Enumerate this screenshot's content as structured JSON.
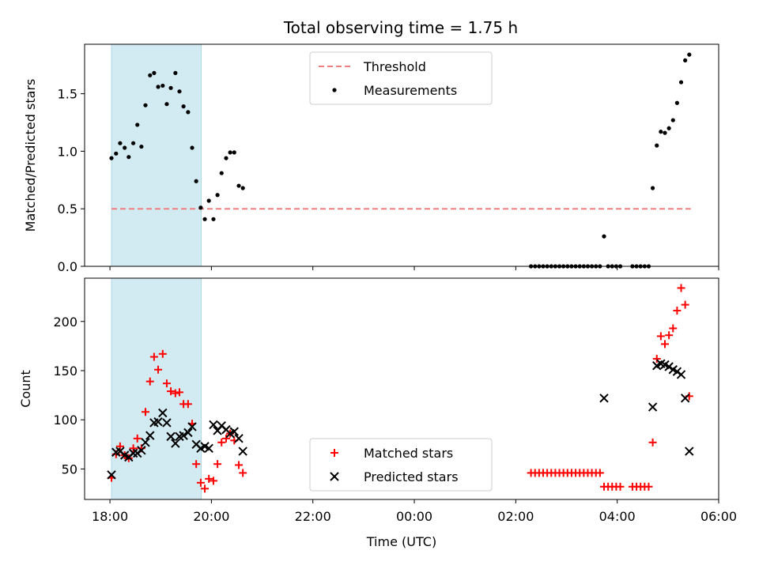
{
  "title": "Total observing time = 1.75 h",
  "colors": {
    "shade": "#ADD8E6",
    "threshold": "#F08080",
    "measurements": "#000000",
    "matched": "#FF0000",
    "predicted": "#000000"
  },
  "chart_data": [
    {
      "type": "scatter",
      "panel": "top",
      "title": "Total observing time = 1.75 h",
      "xlabel": "",
      "ylabel": "Matched/Predicted stars",
      "xlim": [
        17.5,
        30.0
      ],
      "ylim": [
        0.0,
        1.93
      ],
      "x_tick_values": [
        18,
        20,
        22,
        24,
        26,
        28,
        30
      ],
      "y_ticks": [
        "0.0",
        "0.5",
        "1.0",
        "1.5"
      ],
      "y_tick_values": [
        0.0,
        0.5,
        1.0,
        1.5
      ],
      "shaded_region": [
        18.03,
        19.8
      ],
      "legend": {
        "position": "top-center",
        "entries": [
          "Threshold",
          "Measurements"
        ]
      },
      "threshold": {
        "name": "Threshold",
        "value": 0.5,
        "x_range": [
          18.03,
          29.45
        ]
      },
      "series": [
        {
          "name": "Measurements",
          "points": [
            [
              18.03,
              0.94
            ],
            [
              18.12,
              0.98
            ],
            [
              18.2,
              1.07
            ],
            [
              18.29,
              1.03
            ],
            [
              18.37,
              0.95
            ],
            [
              18.46,
              1.07
            ],
            [
              18.54,
              1.23
            ],
            [
              18.62,
              1.04
            ],
            [
              18.7,
              1.4
            ],
            [
              18.79,
              1.66
            ],
            [
              18.87,
              1.68
            ],
            [
              18.95,
              1.56
            ],
            [
              19.04,
              1.57
            ],
            [
              19.12,
              1.41
            ],
            [
              19.2,
              1.55
            ],
            [
              19.29,
              1.68
            ],
            [
              19.37,
              1.52
            ],
            [
              19.45,
              1.39
            ],
            [
              19.54,
              1.34
            ],
            [
              19.62,
              1.03
            ],
            [
              19.7,
              0.74
            ],
            [
              19.79,
              0.51
            ],
            [
              19.87,
              0.41
            ],
            [
              19.95,
              0.57
            ],
            [
              20.04,
              0.41
            ],
            [
              20.12,
              0.62
            ],
            [
              20.2,
              0.81
            ],
            [
              20.29,
              0.94
            ],
            [
              20.37,
              0.99
            ],
            [
              20.45,
              0.99
            ],
            [
              20.54,
              0.7
            ],
            [
              20.62,
              0.68
            ],
            [
              26.3,
              0.0
            ],
            [
              26.38,
              0.0
            ],
            [
              26.46,
              0.0
            ],
            [
              26.54,
              0.0
            ],
            [
              26.62,
              0.0
            ],
            [
              26.7,
              0.0
            ],
            [
              26.78,
              0.0
            ],
            [
              26.86,
              0.0
            ],
            [
              26.94,
              0.0
            ],
            [
              27.02,
              0.0
            ],
            [
              27.1,
              0.0
            ],
            [
              27.18,
              0.0
            ],
            [
              27.26,
              0.0
            ],
            [
              27.34,
              0.0
            ],
            [
              27.42,
              0.0
            ],
            [
              27.5,
              0.0
            ],
            [
              27.58,
              0.0
            ],
            [
              27.66,
              0.0
            ],
            [
              27.74,
              0.26
            ],
            [
              27.82,
              0.0
            ],
            [
              27.9,
              0.0
            ],
            [
              27.98,
              0.0
            ],
            [
              28.06,
              0.0
            ],
            [
              28.3,
              0.0
            ],
            [
              28.38,
              0.0
            ],
            [
              28.46,
              0.0
            ],
            [
              28.54,
              0.0
            ],
            [
              28.62,
              0.0
            ],
            [
              28.7,
              0.68
            ],
            [
              28.78,
              1.05
            ],
            [
              28.86,
              1.17
            ],
            [
              28.94,
              1.16
            ],
            [
              29.02,
              1.2
            ],
            [
              29.1,
              1.27
            ],
            [
              29.18,
              1.42
            ],
            [
              29.26,
              1.6
            ],
            [
              29.34,
              1.79
            ],
            [
              29.42,
              1.84
            ]
          ]
        }
      ]
    },
    {
      "type": "scatter",
      "panel": "bottom",
      "title": "",
      "xlabel": "Time (UTC)",
      "ylabel": "Count",
      "xlim": [
        17.5,
        30.0
      ],
      "ylim": [
        19,
        244
      ],
      "x_ticks": [
        "18:00",
        "20:00",
        "22:00",
        "00:00",
        "02:00",
        "04:00",
        "06:00"
      ],
      "x_tick_values": [
        18,
        20,
        22,
        24,
        26,
        28,
        30
      ],
      "y_ticks": [
        "50",
        "100",
        "150",
        "200"
      ],
      "y_tick_values": [
        50,
        100,
        150,
        200
      ],
      "shaded_region": [
        18.03,
        19.8
      ],
      "legend": {
        "position": "bottom-center",
        "entries": [
          "Matched stars",
          "Predicted stars"
        ]
      },
      "series": [
        {
          "name": "Matched stars",
          "marker": "plus",
          "points": [
            [
              18.03,
              41
            ],
            [
              18.12,
              65
            ],
            [
              18.2,
              73
            ],
            [
              18.29,
              64
            ],
            [
              18.37,
              61
            ],
            [
              18.46,
              71
            ],
            [
              18.54,
              81
            ],
            [
              18.62,
              71
            ],
            [
              18.7,
              108
            ],
            [
              18.79,
              139
            ],
            [
              18.87,
              164
            ],
            [
              18.95,
              151
            ],
            [
              19.04,
              167
            ],
            [
              19.12,
              137
            ],
            [
              19.2,
              129
            ],
            [
              19.29,
              127
            ],
            [
              19.37,
              128
            ],
            [
              19.45,
              116
            ],
            [
              19.54,
              116
            ],
            [
              19.62,
              96
            ],
            [
              19.7,
              55
            ],
            [
              19.79,
              36
            ],
            [
              19.87,
              30
            ],
            [
              19.95,
              40
            ],
            [
              20.04,
              38
            ],
            [
              20.12,
              55
            ],
            [
              20.2,
              77
            ],
            [
              20.29,
              81
            ],
            [
              20.37,
              86
            ],
            [
              20.45,
              79
            ],
            [
              20.54,
              54
            ],
            [
              20.62,
              46
            ],
            [
              26.3,
              46
            ],
            [
              26.38,
              46
            ],
            [
              26.46,
              46
            ],
            [
              26.54,
              46
            ],
            [
              26.62,
              46
            ],
            [
              26.7,
              46
            ],
            [
              26.78,
              46
            ],
            [
              26.86,
              46
            ],
            [
              26.94,
              46
            ],
            [
              27.02,
              46
            ],
            [
              27.1,
              46
            ],
            [
              27.18,
              46
            ],
            [
              27.26,
              46
            ],
            [
              27.34,
              46
            ],
            [
              27.42,
              46
            ],
            [
              27.5,
              46
            ],
            [
              27.58,
              46
            ],
            [
              27.66,
              46
            ],
            [
              27.74,
              32
            ],
            [
              27.82,
              32
            ],
            [
              27.9,
              32
            ],
            [
              27.98,
              32
            ],
            [
              28.06,
              32
            ],
            [
              28.3,
              32
            ],
            [
              28.38,
              32
            ],
            [
              28.46,
              32
            ],
            [
              28.54,
              32
            ],
            [
              28.62,
              32
            ],
            [
              28.7,
              77
            ],
            [
              28.78,
              162
            ],
            [
              28.86,
              185
            ],
            [
              28.94,
              177
            ],
            [
              29.02,
              186
            ],
            [
              29.1,
              193
            ],
            [
              29.18,
              211
            ],
            [
              29.26,
              234
            ],
            [
              29.34,
              217
            ],
            [
              29.42,
              124
            ]
          ]
        },
        {
          "name": "Predicted stars",
          "marker": "x",
          "points": [
            [
              18.03,
              44
            ],
            [
              18.12,
              67
            ],
            [
              18.2,
              68
            ],
            [
              18.29,
              64
            ],
            [
              18.37,
              62
            ],
            [
              18.46,
              66
            ],
            [
              18.54,
              66
            ],
            [
              18.62,
              69
            ],
            [
              18.7,
              77
            ],
            [
              18.79,
              84
            ],
            [
              18.87,
              97
            ],
            [
              18.95,
              98
            ],
            [
              19.04,
              107
            ],
            [
              19.12,
              97
            ],
            [
              19.2,
              83
            ],
            [
              19.29,
              76
            ],
            [
              19.37,
              83
            ],
            [
              19.45,
              84
            ],
            [
              19.54,
              87
            ],
            [
              19.62,
              93
            ],
            [
              19.7,
              75
            ],
            [
              19.79,
              71
            ],
            [
              19.87,
              73
            ],
            [
              19.95,
              71
            ],
            [
              20.04,
              95
            ],
            [
              20.12,
              89
            ],
            [
              20.2,
              94
            ],
            [
              20.29,
              90
            ],
            [
              20.37,
              86
            ],
            [
              20.45,
              88
            ],
            [
              20.54,
              81
            ],
            [
              20.62,
              68
            ],
            [
              27.74,
              122
            ],
            [
              28.7,
              113
            ],
            [
              28.78,
              155
            ],
            [
              28.86,
              157
            ],
            [
              28.94,
              156
            ],
            [
              29.02,
              154
            ],
            [
              29.1,
              151
            ],
            [
              29.18,
              149
            ],
            [
              29.26,
              146
            ],
            [
              29.34,
              122
            ],
            [
              29.42,
              68
            ]
          ]
        }
      ]
    }
  ]
}
